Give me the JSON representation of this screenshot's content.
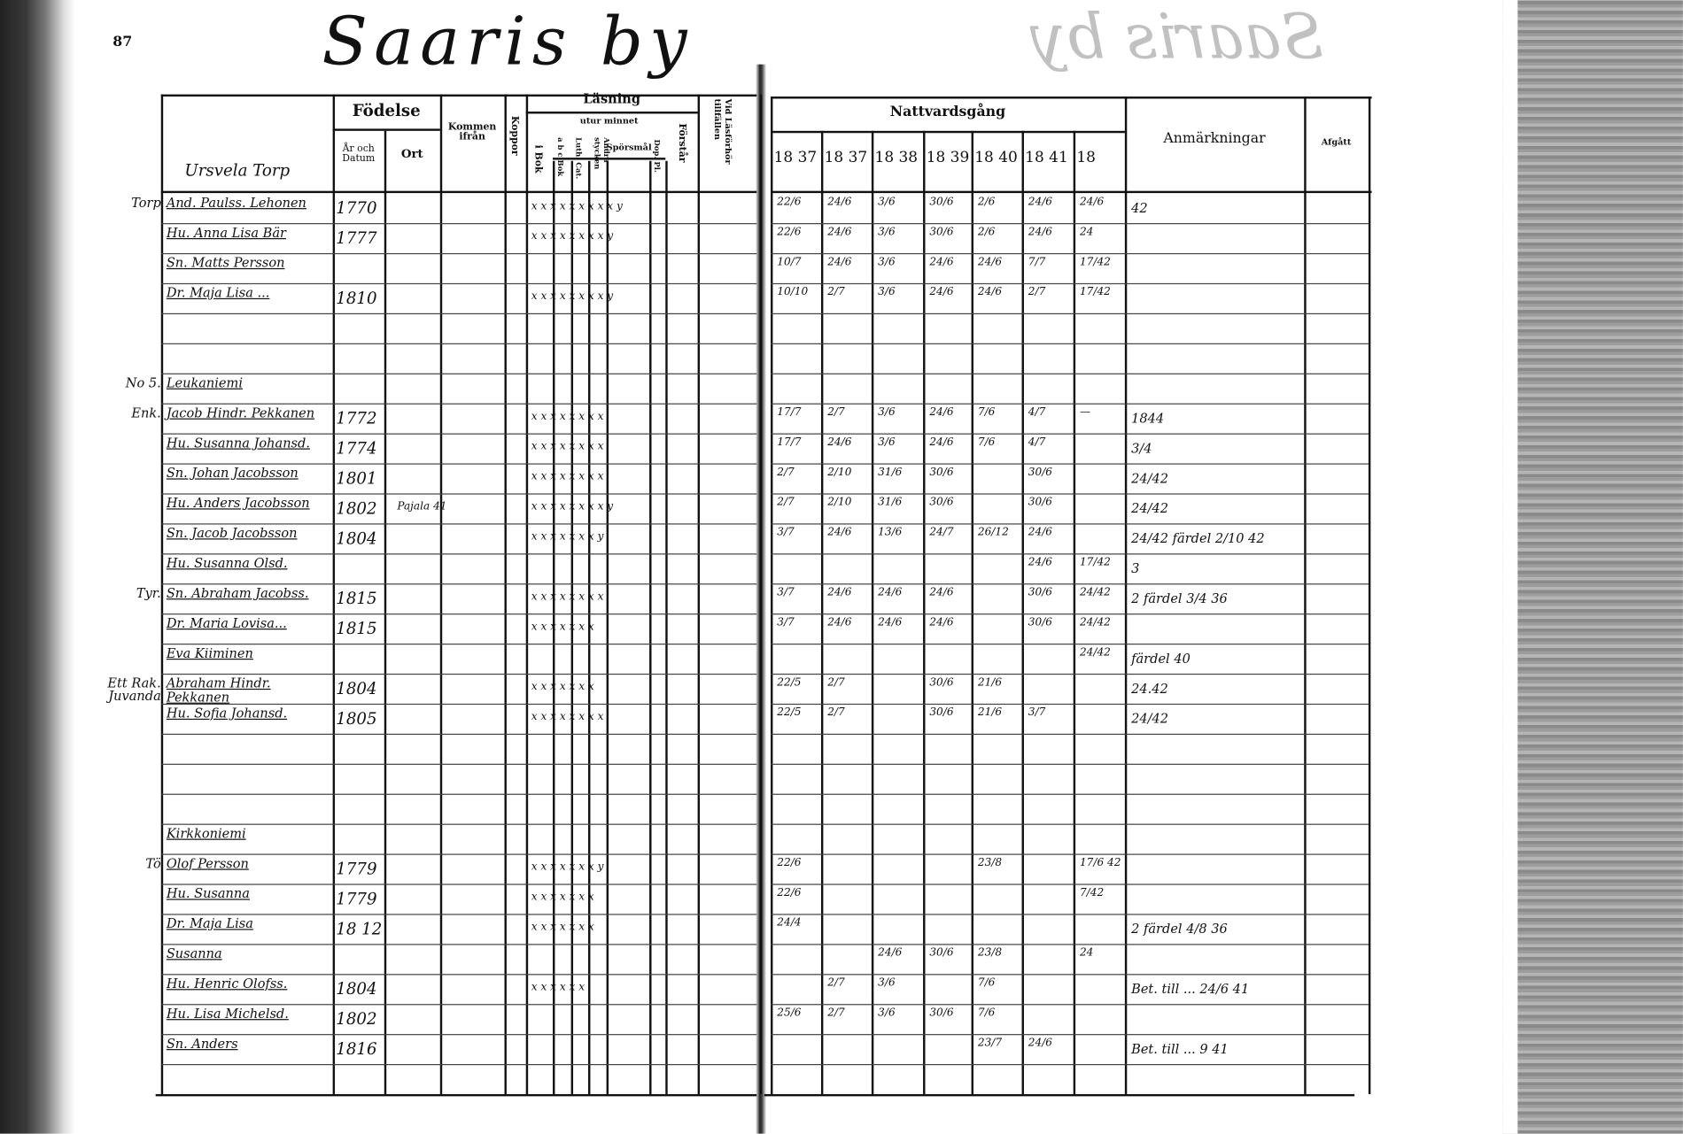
{
  "page_number": "87",
  "title": "Saaris by",
  "headers": {
    "fodelse": "Födelse",
    "ar_och_datum": "År och Datum",
    "ort": "Ort",
    "kommen_ifran": "Kommen ifrån",
    "koppor": "Koppor",
    "lasning": "Läsning",
    "utur_minnet": "utur minnet",
    "i_bok": "i Bok",
    "abc_bok": "a b c Bok",
    "luth_cat": "Luth. Cat.",
    "andra_stycken": "Andra stycken",
    "sporsmal": "Spörsmål",
    "dop_pl": "Dop. Pl.",
    "forstar": "Förstår",
    "vid_lasforhor": "Vid Läsförhör tillfällen",
    "nattvardsgang": "Nattvardsgång",
    "years": [
      "18 37",
      "18 37",
      "18 38",
      "18 39",
      "18 40",
      "18 41",
      "18"
    ],
    "anmarkningar": "Anmärkningar",
    "afgatt": "Afgått"
  },
  "section_label": "Ursvela Torp",
  "rows": [
    {
      "i": 0,
      "margin": "Torp",
      "name": "And. Paulss. Lehonen",
      "year": "1770",
      "reading": "x x x x x   x x x  x  y",
      "nv": [
        "22/6",
        "24/6",
        "3/6",
        "30/6",
        "2/6",
        "24/6",
        "24/6"
      ],
      "anm": "42"
    },
    {
      "i": 1,
      "name": "Hu. Anna Lisa Bär",
      "year": "1777",
      "reading": "x x x x x   x x x  y",
      "nv": [
        "22/6",
        "24/6",
        "3/6",
        "30/6",
        "2/6",
        "24/6",
        "24"
      ],
      "anm": ""
    },
    {
      "i": 2,
      "name": "Sn. Matts Persson",
      "year": "",
      "reading": "",
      "nv": [
        "10/7",
        "24/6",
        "3/6",
        "24/6",
        "24/6",
        "7/7",
        "17/42"
      ],
      "anm": ""
    },
    {
      "i": 3,
      "name": "Dr. Maja Lisa ...",
      "year": "1810",
      "reading": "x x x x x   x x x  y",
      "nv": [
        "10/10",
        "2/7",
        "3/6",
        "24/6",
        "24/6",
        "2/7",
        "17/42"
      ],
      "anm": ""
    },
    {
      "i": 6,
      "margin": "No 5.",
      "name": "Leukaniemi",
      "year": "",
      "reading": "",
      "nv": [],
      "anm": ""
    },
    {
      "i": 7,
      "margin": "Enk.",
      "name": "Jacob Hindr. Pekkanen",
      "year": "1772",
      "reading": "x x x x   x x x  x",
      "nv": [
        "17/7",
        "2/7",
        "3/6",
        "24/6",
        "7/6",
        "4/7",
        "—"
      ],
      "anm": "1844"
    },
    {
      "i": 8,
      "name": "Hu. Susanna Johansd.",
      "year": "1774",
      "reading": "x x x x   x x x  x",
      "nv": [
        "17/7",
        "24/6",
        "3/6",
        "24/6",
        "7/6",
        "4/7",
        ""
      ],
      "anm": "3/4"
    },
    {
      "i": 9,
      "name": "Sn. Johan Jacobsson",
      "year": "1801",
      "reading": "x x x x   x x x  x",
      "nv": [
        "2/7",
        "2/10",
        "31/6",
        "30/6",
        "",
        "30/6",
        ""
      ],
      "anm": "24/42"
    },
    {
      "i": 10,
      "name": "Hu. Anders Jacobsson",
      "year": "1802",
      "ort": "Pajala 41",
      "reading": "x x x x   x x x  x y",
      "nv": [
        "2/7",
        "2/10",
        "31/6",
        "30/6",
        "",
        "30/6",
        ""
      ],
      "anm": "24/42"
    },
    {
      "i": 11,
      "name": "Sn. Jacob Jacobsson",
      "year": "1804",
      "reading": "x x x x   x x x  y",
      "nv": [
        "3/7",
        "24/6",
        "13/6",
        "24/7",
        "26/12",
        "24/6",
        ""
      ],
      "anm": "24/42  färdel  2/10  42"
    },
    {
      "i": 12,
      "name": "Hu. Susanna Olsd.",
      "year": "",
      "reading": "",
      "nv": [
        "",
        "",
        "",
        "",
        "",
        "24/6",
        "17/42"
      ],
      "anm": "3"
    },
    {
      "i": 13,
      "margin": "Tyr.",
      "name": "Sn. Abraham Jacobss.",
      "year": "1815",
      "reading": "x x x x   x x x  x",
      "nv": [
        "3/7",
        "24/6",
        "24/6",
        "24/6",
        "",
        "30/6",
        "24/42"
      ],
      "anm": "2  färdel  3/4  36"
    },
    {
      "i": 14,
      "name": "Dr. Maria Lovisa...",
      "year": "1815",
      "reading": "x x x x   x x x",
      "nv": [
        "3/7",
        "24/6",
        "24/6",
        "24/6",
        "",
        "30/6",
        "24/42"
      ],
      "anm": ""
    },
    {
      "i": 15,
      "name": "Eva Kiiminen",
      "year": "",
      "reading": "",
      "nv": [
        "",
        "",
        "",
        "",
        "",
        "",
        "24/42"
      ],
      "anm": "färdel  40"
    },
    {
      "i": 16,
      "margin": "Ett Rak. Juvanda",
      "name": "Abraham Hindr. Pekkanen",
      "year": "1804",
      "reading": "x x x x   x x x",
      "nv": [
        "22/5",
        "2/7",
        "",
        "30/6",
        "21/6",
        "",
        ""
      ],
      "anm": "24.42"
    },
    {
      "i": 17,
      "name": "Hu. Sofia Johansd.",
      "year": "1805",
      "reading": "x x x x x x x x",
      "nv": [
        "22/5",
        "2/7",
        "",
        "30/6",
        "21/6",
        "3/7",
        ""
      ],
      "anm": "24/42"
    },
    {
      "i": 21,
      "name": "Kirkkoniemi",
      "year": "",
      "reading": "",
      "nv": [],
      "anm": ""
    },
    {
      "i": 22,
      "margin": "Tö",
      "name": "Olof Persson",
      "year": "1779",
      "reading": "x x x x   x x x  y",
      "nv": [
        "22/6",
        "",
        "",
        "",
        "23/8",
        "",
        "17/6 42"
      ],
      "anm": ""
    },
    {
      "i": 23,
      "name": "Hu. Susanna",
      "year": "1779",
      "reading": "x x x x   x x x",
      "nv": [
        "22/6",
        "",
        "",
        "",
        "",
        "",
        "7/42"
      ],
      "anm": ""
    },
    {
      "i": 24,
      "name": "Dr. Maja Lisa",
      "year": "18 12",
      "reading": "x x x x   x x x",
      "nv": [
        "24/4",
        "",
        "",
        "",
        "",
        "",
        ""
      ],
      "anm": "2  färdel  4/8  36"
    },
    {
      "i": 25,
      "name": "Susanna",
      "year": "",
      "reading": "",
      "nv": [
        "",
        "",
        "24/6",
        "30/6",
        "23/8",
        "",
        "24"
      ],
      "anm": ""
    },
    {
      "i": 26,
      "name": "Hu. Henric Olofss.",
      "year": "1804",
      "reading": "x x x x   x x",
      "nv": [
        "",
        "2/7",
        "3/6",
        "",
        "7/6",
        "",
        ""
      ],
      "anm": "Bet. till ...  24/6 41"
    },
    {
      "i": 27,
      "name": "Hu. Lisa Michelsd.",
      "year": "1802",
      "reading": "",
      "nv": [
        "25/6",
        "2/7",
        "3/6",
        "30/6",
        "7/6",
        "",
        ""
      ],
      "anm": ""
    },
    {
      "i": 28,
      "name": "Sn. Anders",
      "year": "1816",
      "reading": "",
      "nv": [
        "",
        "",
        "",
        "",
        "23/7",
        "24/6",
        ""
      ],
      "anm": "Bet. till ...  9  41"
    }
  ]
}
